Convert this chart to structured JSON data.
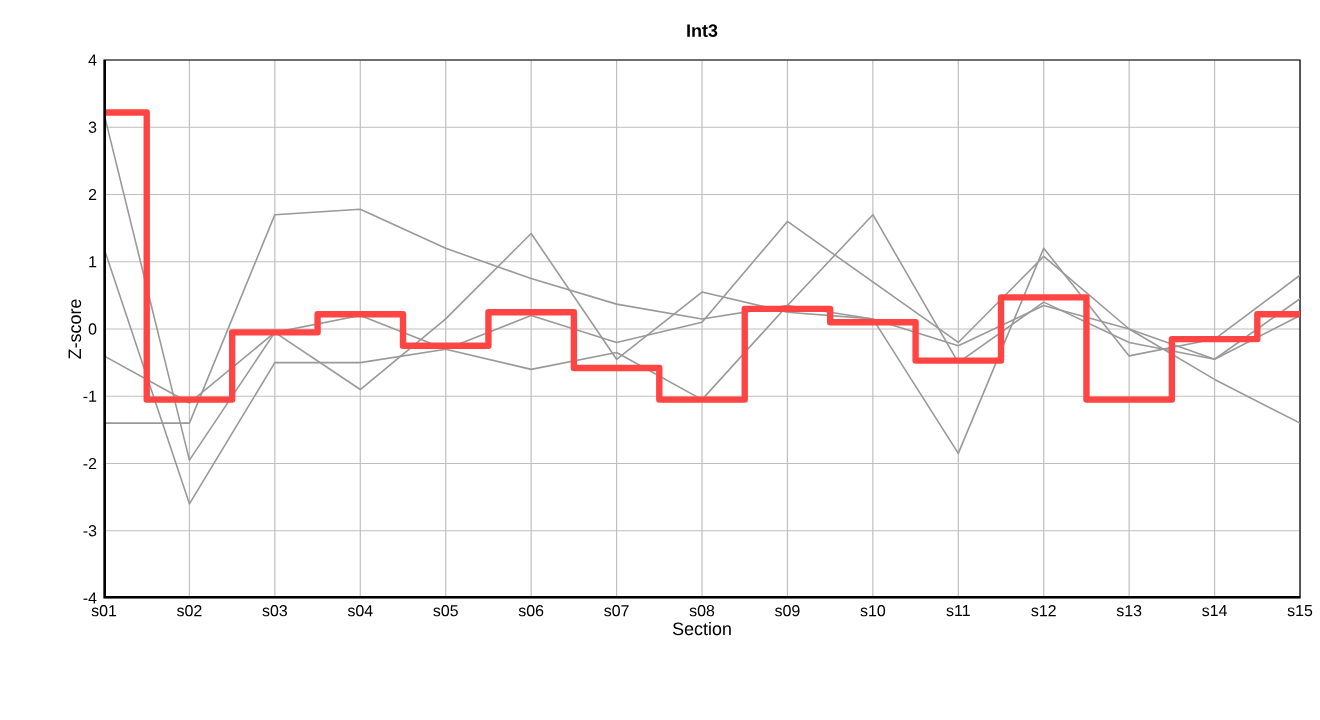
{
  "chart_data": {
    "type": "line",
    "title": "Int3",
    "xlabel": "Section",
    "ylabel": "Z-score",
    "categories": [
      "s01",
      "s02",
      "s03",
      "s04",
      "s05",
      "s06",
      "s07",
      "s08",
      "s09",
      "s10",
      "s11",
      "s12",
      "s13",
      "s14",
      "s15"
    ],
    "ylim": [
      -4,
      4
    ],
    "yticks": [
      -4,
      -3,
      -2,
      -1,
      0,
      1,
      2,
      3,
      4
    ],
    "grid": true,
    "marker": "none",
    "series": [
      {
        "color": "#999999",
        "values": [
          -1.4,
          -1.4,
          1.7,
          1.78,
          1.2,
          0.75,
          0.37,
          0.15,
          0.35,
          0.15,
          -0.25,
          0.35,
          0,
          -0.45,
          0.45
        ]
      },
      {
        "color": "#999999",
        "values": [
          -0.4,
          -1.1,
          -0.05,
          -0.9,
          0.15,
          1.42,
          -0.45,
          0.55,
          0.25,
          0.15,
          -1.85,
          1.2,
          -0.4,
          -0.15,
          0.8
        ]
      },
      {
        "color": "#999999",
        "values": [
          3.2,
          -1.95,
          -0.05,
          0.2,
          -0.3,
          0.2,
          -0.2,
          0.1,
          1.6,
          0.7,
          -0.2,
          1.08,
          0,
          -0.75,
          -1.4
        ]
      },
      {
        "color": "#999999",
        "values": [
          1.2,
          -2.6,
          -0.5,
          -0.5,
          -0.3,
          -0.6,
          -0.35,
          -1.05,
          0.35,
          1.7,
          -0.5,
          0.4,
          -0.2,
          -0.45,
          0.2
        ]
      },
      {
        "type": "step",
        "color": "#ff4444",
        "values": [
          3.22,
          -1.05,
          -0.05,
          0.22,
          -0.25,
          0.25,
          -0.58,
          -1.05,
          0.3,
          0.1,
          -0.47,
          0.47,
          -1.05,
          -0.15,
          0.22
        ]
      }
    ]
  }
}
